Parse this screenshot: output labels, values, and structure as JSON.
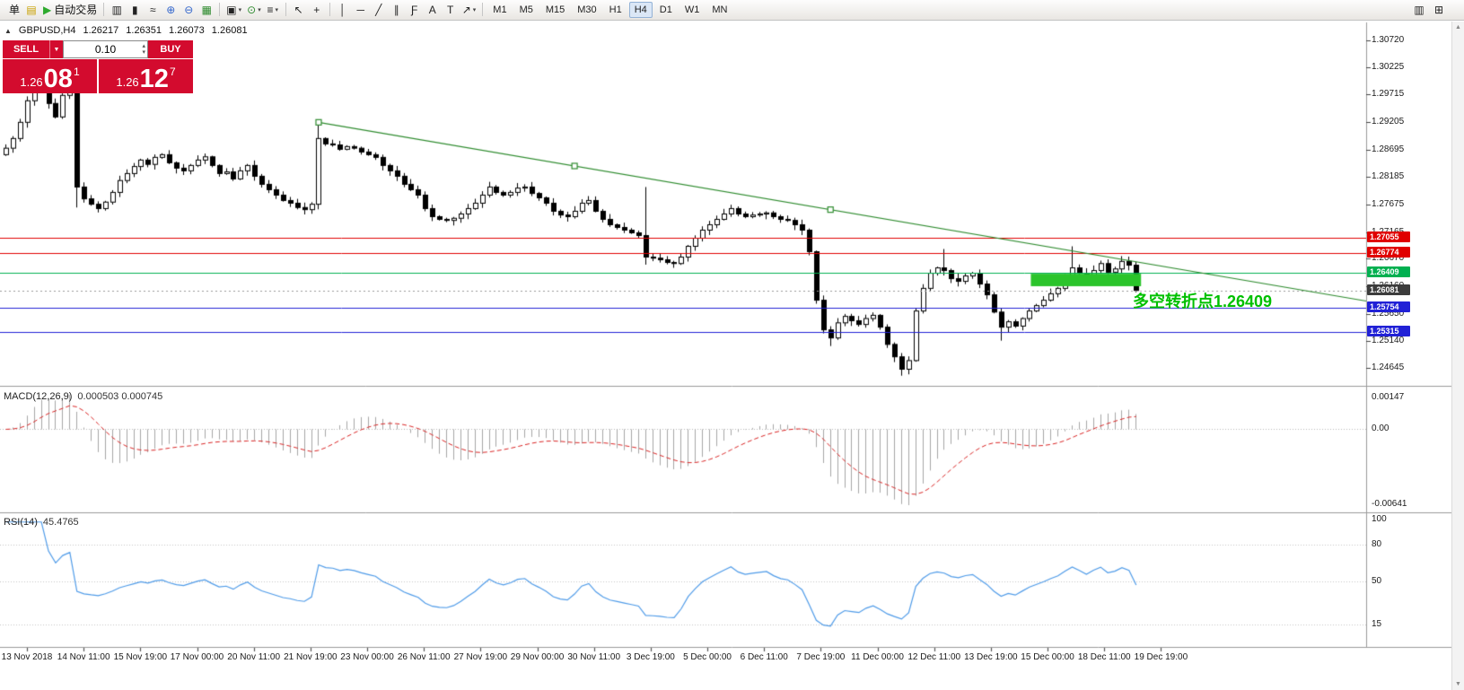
{
  "colors": {
    "trade_red": "#d30b2e",
    "trendline_green": "#2e8b2e",
    "pivot_green": "#00b050",
    "resistance_red": "#e00000",
    "support_blue": "#2121d6",
    "last_price_gray": "#3c3c3c",
    "annotation_green": "#00c000",
    "rsi_blue": "#4f9be8",
    "macd_signal_red": "#d92525",
    "macd_histogram_gray": "#a6a6a6"
  },
  "toolbar": {
    "items": [
      {
        "name": "new-order-button",
        "label": "单"
      },
      {
        "name": "profiles-icon",
        "glyph": "▤",
        "color": "#c8a000"
      },
      {
        "name": "autotrading-button",
        "glyph": "▶",
        "color": "#2eaa2e",
        "label": "自动交易"
      },
      {
        "sep": true
      },
      {
        "name": "bar-chart-icon",
        "glyph": "▥"
      },
      {
        "name": "candlestick-chart-icon",
        "glyph": "▮"
      },
      {
        "name": "line-chart-icon",
        "glyph": "≈"
      },
      {
        "name": "zoom-in-icon",
        "glyph": "⊕",
        "color": "#3366cc"
      },
      {
        "name": "zoom-out-icon",
        "glyph": "⊖",
        "color": "#3366cc"
      },
      {
        "name": "tile-windows-icon",
        "glyph": "▦",
        "color": "#2e8b2e"
      },
      {
        "sep": true
      },
      {
        "name": "new-chart-icon",
        "glyph": "▣",
        "caret": true
      },
      {
        "name": "period-icon",
        "glyph": "⊙",
        "color": "#2e8b2e",
        "caret": true
      },
      {
        "name": "templates-icon",
        "glyph": "≡",
        "caret": true
      },
      {
        "sep": true
      },
      {
        "name": "cursor-icon",
        "glyph": "↖"
      },
      {
        "name": "crosshair-icon",
        "glyph": "+"
      },
      {
        "sep": true
      },
      {
        "name": "vertical-line-icon",
        "glyph": "│"
      },
      {
        "name": "horizontal-line-icon",
        "glyph": "─"
      },
      {
        "name": "trendline-icon",
        "glyph": "╱"
      },
      {
        "name": "channel-icon",
        "glyph": "∥"
      },
      {
        "name": "fibonacci-icon",
        "glyph": "Ƒ"
      },
      {
        "name": "text-icon",
        "glyph": "A"
      },
      {
        "name": "label-icon",
        "glyph": "T"
      },
      {
        "name": "arrows-icon",
        "glyph": "↗",
        "caret": true
      },
      {
        "sep": true
      }
    ],
    "timeframes": [
      "M1",
      "M5",
      "M15",
      "M30",
      "H1",
      "H4",
      "D1",
      "W1",
      "MN"
    ],
    "active_timeframe": "H4",
    "right_items": [
      {
        "name": "chart-window-icon",
        "glyph": "▥"
      },
      {
        "name": "docking-icon",
        "glyph": "⊞"
      }
    ],
    "dropdown_caret": "▾"
  },
  "chart_header": {
    "collapse_icon": "▲",
    "symbol": "GBPUSD,H4",
    "open": "1.26217",
    "high": "1.26351",
    "low": "1.26073",
    "close": "1.26081"
  },
  "trade_panel": {
    "sell_label": "SELL",
    "buy_label": "BUY",
    "volume": "0.10",
    "volume_caret": "▼",
    "spin_up": "▴",
    "spin_dn": "▾",
    "sell_price_int": "1.26",
    "sell_price_pips": "08",
    "sell_price_point": "1",
    "buy_price_int": "1.26",
    "buy_price_pips": "12",
    "buy_price_point": "7"
  },
  "indicator_labels": {
    "macd": "MACD(12,26,9)",
    "macd_values": "0.000503 0.000745",
    "rsi": "RSI(14)",
    "rsi_value": "45.4765"
  },
  "annotation": {
    "text": "多空转折点1.26409",
    "color": "#00c000"
  },
  "scrollbar": {
    "up_icon": "▲",
    "down_icon": "▼"
  },
  "chart_data": {
    "type": "candlestick",
    "symbol": "GBPUSD",
    "timeframe": "H4",
    "ylim": [
      1.24645,
      1.3072
    ],
    "price_ticks": [
      "1.30720",
      "1.30225",
      "1.29715",
      "1.29205",
      "1.28695",
      "1.28185",
      "1.27675",
      "1.27165",
      "1.26670",
      "1.26160",
      "1.25650",
      "1.25140",
      "1.24645"
    ],
    "price_tags": [
      {
        "label": "1.27055",
        "color": "#e00000",
        "kind": "resistance-1"
      },
      {
        "label": "1.26774",
        "color": "#e00000",
        "kind": "resistance-2"
      },
      {
        "label": "1.26409",
        "color": "#00b050",
        "kind": "pivot"
      },
      {
        "label": "1.26081",
        "color": "#3c3c3c",
        "kind": "last-price"
      },
      {
        "label": "1.25754",
        "color": "#2121d6",
        "kind": "support-1"
      },
      {
        "label": "1.25315",
        "color": "#2121d6",
        "kind": "support-2"
      }
    ],
    "hlines": [
      {
        "price": 1.27055,
        "color": "#e00000"
      },
      {
        "price": 1.26774,
        "color": "#e00000"
      },
      {
        "price": 1.26409,
        "color": "#00b050"
      },
      {
        "price": 1.25754,
        "color": "#2121d6"
      },
      {
        "price": 1.25315,
        "color": "#2121d6"
      }
    ],
    "last_price": 1.26081,
    "trendline": {
      "color": "#2e8b2e",
      "ray": true,
      "anchors": [
        {
          "bar": 44,
          "price": 1.292
        },
        {
          "bar": 116,
          "price": 1.2758
        }
      ]
    },
    "highlight_rect": {
      "bar_start": 144.5,
      "bar_end": 160,
      "price_top": 1.2639,
      "price_bottom": 1.2616,
      "color": "#2bc42b"
    },
    "candles_close": [
      1.2872,
      1.289,
      1.292,
      1.296,
      1.299,
      1.2998,
      1.2955,
      1.293,
      1.297,
      1.2992,
      1.28,
      1.2778,
      1.2768,
      1.276,
      1.2772,
      1.279,
      1.2812,
      1.2825,
      1.2838,
      1.285,
      1.2842,
      1.2855,
      1.286,
      1.2845,
      1.2835,
      1.283,
      1.284,
      1.285,
      1.2856,
      1.284,
      1.2825,
      1.2828,
      1.2815,
      1.283,
      1.284,
      1.282,
      1.2805,
      1.2795,
      1.2785,
      1.2775,
      1.277,
      1.2762,
      1.2758,
      1.2768,
      1.289,
      1.288,
      1.2878,
      1.287,
      1.2875,
      1.2872,
      1.2865,
      1.286,
      1.2855,
      1.284,
      1.283,
      1.282,
      1.2805,
      1.2795,
      1.2785,
      1.276,
      1.2745,
      1.274,
      1.2738,
      1.2742,
      1.275,
      1.276,
      1.277,
      1.2785,
      1.28,
      1.279,
      1.2785,
      1.279,
      1.2798,
      1.28,
      1.2788,
      1.278,
      1.277,
      1.2755,
      1.2748,
      1.2745,
      1.2755,
      1.277,
      1.2775,
      1.2755,
      1.274,
      1.273,
      1.2725,
      1.272,
      1.2715,
      1.271,
      1.267,
      1.2668,
      1.2665,
      1.266,
      1.2658,
      1.267,
      1.269,
      1.2705,
      1.272,
      1.273,
      1.274,
      1.275,
      1.276,
      1.275,
      1.2745,
      1.2748,
      1.275,
      1.2752,
      1.2745,
      1.274,
      1.2738,
      1.273,
      1.272,
      1.268,
      1.259,
      1.2535,
      1.252,
      1.2548,
      1.256,
      1.2552,
      1.2545,
      1.2556,
      1.2562,
      1.254,
      1.2508,
      1.2485,
      1.2462,
      1.2478,
      1.257,
      1.2612,
      1.264,
      1.265,
      1.2645,
      1.263,
      1.2625,
      1.2635,
      1.264,
      1.262,
      1.26,
      1.2568,
      1.254,
      1.255,
      1.2542,
      1.2556,
      1.257,
      1.258,
      1.259,
      1.2602,
      1.2612,
      1.2632,
      1.265,
      1.264,
      1.2628,
      1.2645,
      1.2658,
      1.2642,
      1.2648,
      1.2662,
      1.2655,
      1.26081
    ],
    "wick_overrides": {
      "4": {
        "high": 1.3005
      },
      "9": {
        "high": 1.3008
      },
      "10": {
        "low": 1.2762
      },
      "44": {
        "high": 1.292
      },
      "90": {
        "high": 1.28,
        "low": 1.2656
      },
      "116": {
        "low": 1.2505
      },
      "126": {
        "low": 1.245
      },
      "132": {
        "high": 1.2685
      },
      "140": {
        "low": 1.2515
      },
      "150": {
        "high": 1.269
      }
    },
    "macd": {
      "fast": 12,
      "slow": 26,
      "signal": 9,
      "axis_ticks": [
        "0.00147",
        "0.00",
        "-0.00641"
      ],
      "histogram_color": "#a6a6a6",
      "signal_color": "#d92525"
    },
    "rsi": {
      "period": 14,
      "color": "#4f9be8",
      "axis_ticks": [
        100,
        80,
        50,
        15
      ],
      "levels": [
        80,
        50,
        15
      ]
    },
    "time_labels": [
      "13 Nov 2018",
      "14 Nov 11:00",
      "15 Nov 19:00",
      "17 Nov 00:00",
      "20 Nov 11:00",
      "21 Nov 19:00",
      "23 Nov 00:00",
      "26 Nov 11:00",
      "27 Nov 19:00",
      "29 Nov 00:00",
      "30 Nov 11:00",
      "3 Dec 19:00",
      "5 Dec 00:00",
      "6 Dec 11:00",
      "7 Dec 19:00",
      "11 Dec 00:00",
      "12 Dec 11:00",
      "13 Dec 19:00",
      "15 Dec 00:00",
      "18 Dec 11:00",
      "19 Dec 19:00"
    ]
  }
}
